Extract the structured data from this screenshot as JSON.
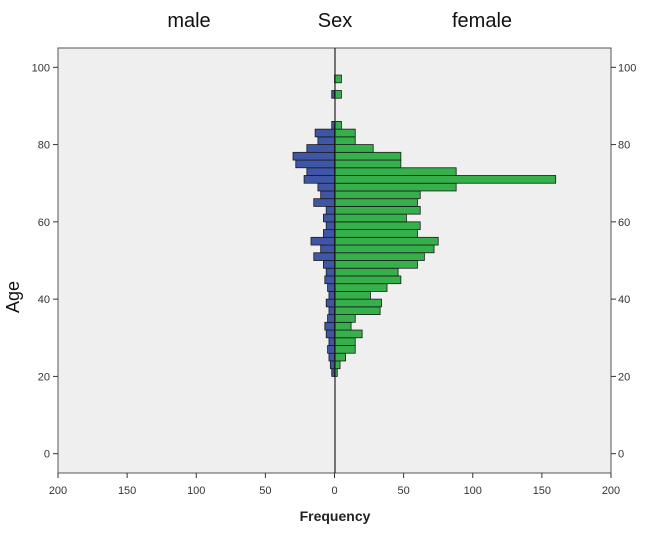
{
  "chart_data": {
    "type": "bar",
    "orientation": "horizontal",
    "layout": "population-pyramid",
    "group_title": "Sex",
    "xlabel": "Frequency",
    "ylabel": "Age",
    "xlim": [
      -200,
      200
    ],
    "ylim": [
      -5,
      105
    ],
    "x_ticks": [
      200,
      150,
      100,
      50,
      0,
      50,
      100,
      150,
      200
    ],
    "y_ticks": [
      0,
      20,
      40,
      60,
      80,
      100
    ],
    "bin_width": 2,
    "grid": false,
    "series": [
      {
        "name": "male",
        "color": "#3F56A6",
        "bins": [
          20,
          22,
          24,
          26,
          28,
          30,
          32,
          34,
          36,
          38,
          40,
          42,
          44,
          46,
          48,
          50,
          52,
          54,
          56,
          58,
          60,
          62,
          64,
          66,
          68,
          70,
          72,
          74,
          76,
          78,
          80,
          82,
          84,
          86,
          88,
          90,
          92,
          94,
          96
        ],
        "values": [
          2,
          3,
          4,
          5,
          4,
          6,
          7,
          5,
          4,
          6,
          4,
          5,
          7,
          6,
          8,
          15,
          10,
          17,
          8,
          6,
          8,
          6,
          15,
          10,
          12,
          22,
          20,
          28,
          30,
          20,
          12,
          14,
          2,
          0,
          0,
          0,
          2,
          0,
          0
        ]
      },
      {
        "name": "female",
        "color": "#36B04A",
        "bins": [
          20,
          22,
          24,
          26,
          28,
          30,
          32,
          34,
          36,
          38,
          40,
          42,
          44,
          46,
          48,
          50,
          52,
          54,
          56,
          58,
          60,
          62,
          64,
          66,
          68,
          70,
          72,
          74,
          76,
          78,
          80,
          82,
          84,
          86,
          88,
          90,
          92,
          94,
          96
        ],
        "values": [
          2,
          4,
          8,
          15,
          15,
          20,
          12,
          15,
          33,
          34,
          26,
          38,
          48,
          46,
          60,
          65,
          72,
          75,
          60,
          62,
          52,
          62,
          60,
          62,
          88,
          160,
          88,
          48,
          48,
          28,
          15,
          15,
          5,
          0,
          0,
          0,
          5,
          0,
          5
        ]
      }
    ]
  }
}
